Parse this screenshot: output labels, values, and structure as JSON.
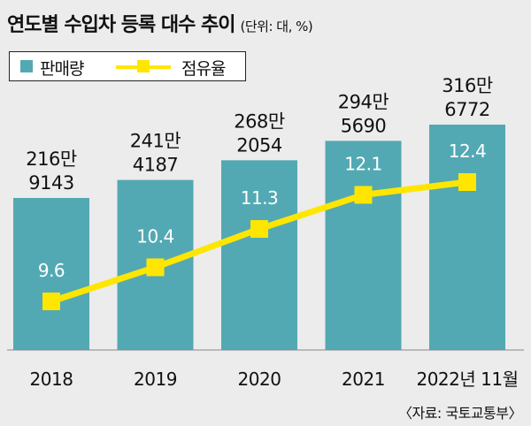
{
  "header": {
    "title": "연도별 수입차 등록 대수 추이",
    "unit": "(단위: 대, %)"
  },
  "legend": {
    "bar_label": "판매량",
    "line_label": "점유율"
  },
  "source": "〈자료: 국토교통부〉",
  "colors": {
    "background": "#ececec",
    "bar": "#53a9b3",
    "line": "#ffe600",
    "text": "#111111"
  },
  "chart_data": {
    "type": "bar",
    "categories": [
      "2018",
      "2019",
      "2020",
      "2021",
      "2022년 11월"
    ],
    "series": [
      {
        "name": "판매량",
        "type": "bar",
        "values": [
          2169143,
          2414187,
          2682054,
          2945690,
          3166772
        ],
        "labels": [
          [
            "216만",
            "9143"
          ],
          [
            "241만",
            "4187"
          ],
          [
            "268만",
            "2054"
          ],
          [
            "294만",
            "5690"
          ],
          [
            "316만",
            "6772"
          ]
        ]
      },
      {
        "name": "점유율",
        "type": "line",
        "values": [
          9.6,
          10.4,
          11.3,
          12.1,
          12.4
        ],
        "labels": [
          "9.6",
          "10.4",
          "11.3",
          "12.1",
          "12.4"
        ]
      }
    ],
    "legend_position": "top-left",
    "grid": false
  }
}
